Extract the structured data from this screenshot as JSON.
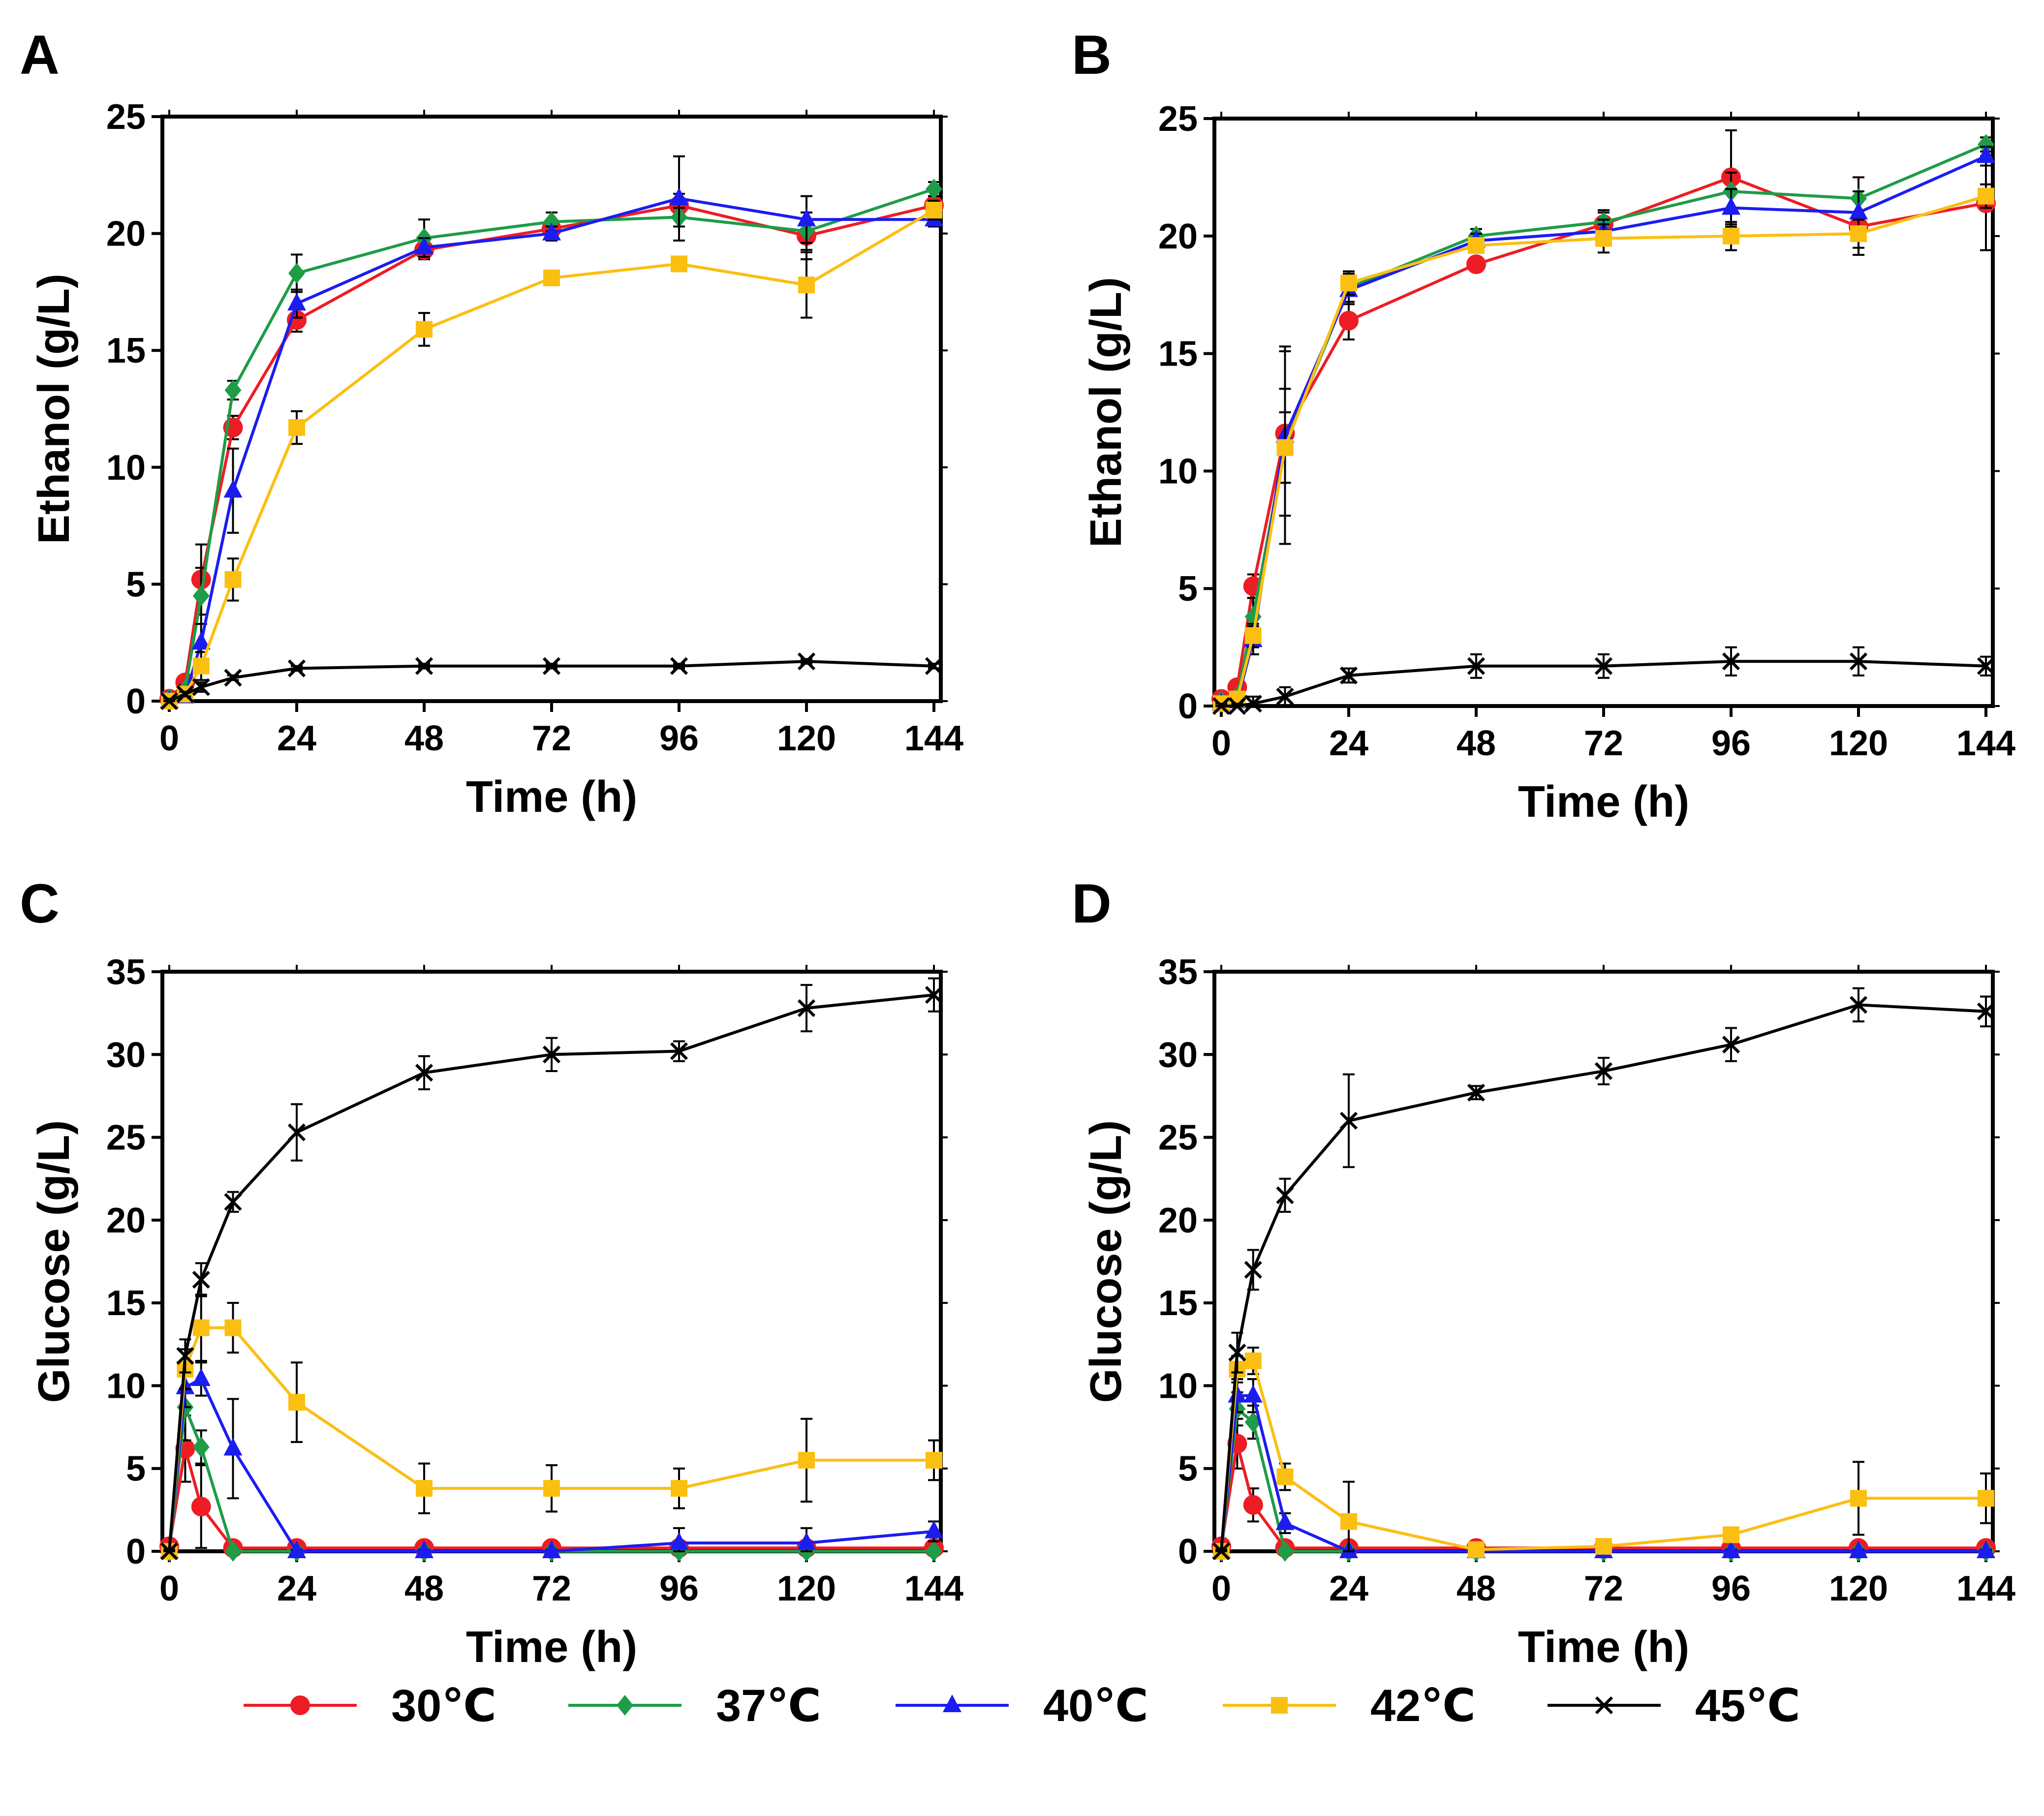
{
  "chart_data": [
    {
      "panel": "A",
      "type": "line",
      "title": "",
      "xlabel": "Time (h)",
      "ylabel": "Ethanol (g/L)",
      "xlim": [
        0,
        144
      ],
      "ylim": [
        0,
        25
      ],
      "xticks": [
        "0",
        "24",
        "48",
        "72",
        "96",
        "120",
        "144"
      ],
      "yticks": [
        "0",
        "5",
        "10",
        "15",
        "20",
        "25"
      ],
      "series": [
        {
          "name": "30℃",
          "x": [
            0,
            3,
            6,
            12,
            24,
            48,
            72,
            96,
            120,
            144
          ],
          "values": [
            0.1,
            0.8,
            5.2,
            11.7,
            16.3,
            19.3,
            20.2,
            21.2,
            19.9,
            21.2
          ],
          "errors": [
            0.1,
            0.2,
            1.5,
            0.5,
            0.5,
            0.4,
            0.3,
            0.5,
            1.0,
            0.4
          ]
        },
        {
          "name": "37℃",
          "x": [
            0,
            3,
            6,
            12,
            24,
            48,
            72,
            96,
            120,
            144
          ],
          "values": [
            0.1,
            0.5,
            4.5,
            13.3,
            18.3,
            19.8,
            20.5,
            20.7,
            20.1,
            21.9
          ],
          "errors": [
            0.1,
            0.2,
            1.2,
            0.4,
            0.8,
            0.8,
            0.4,
            0.4,
            0.8,
            0.3
          ]
        },
        {
          "name": "40℃",
          "x": [
            0,
            3,
            6,
            12,
            24,
            48,
            72,
            96,
            120,
            144
          ],
          "values": [
            0.0,
            0.2,
            2.5,
            9.0,
            17.0,
            19.4,
            20.0,
            21.5,
            20.6,
            20.6
          ],
          "errors": [
            0.1,
            0.1,
            0.8,
            1.8,
            0.6,
            0.4,
            0.3,
            1.8,
            1.0,
            0.3
          ]
        },
        {
          "name": "42℃",
          "x": [
            0,
            3,
            6,
            12,
            24,
            48,
            72,
            96,
            120,
            144
          ],
          "values": [
            0.0,
            0.3,
            1.5,
            5.2,
            11.7,
            15.9,
            18.1,
            18.7,
            17.8,
            21.0
          ],
          "errors": [
            0.1,
            0.1,
            0.6,
            0.9,
            0.7,
            0.7,
            0.3,
            0.3,
            1.4,
            0.4
          ]
        },
        {
          "name": "45℃",
          "x": [
            0,
            3,
            6,
            12,
            24,
            48,
            72,
            96,
            120,
            144
          ],
          "values": [
            0.0,
            0.3,
            0.6,
            1.0,
            1.4,
            1.5,
            1.5,
            1.5,
            1.7,
            1.5
          ],
          "errors": [
            0.1,
            0.1,
            0.2,
            0.1,
            0.1,
            0.1,
            0.1,
            0.1,
            0.1,
            0.1
          ]
        }
      ]
    },
    {
      "panel": "B",
      "type": "line",
      "title": "",
      "xlabel": "Time (h)",
      "ylabel": "Ethanol (g/L)",
      "xlim": [
        0,
        144
      ],
      "ylim": [
        0,
        25
      ],
      "xticks": [
        "0",
        "24",
        "48",
        "72",
        "96",
        "120",
        "144"
      ],
      "yticks": [
        "0",
        "5",
        "10",
        "15",
        "20",
        "25"
      ],
      "series": [
        {
          "name": "30℃",
          "x": [
            0,
            3,
            6,
            12,
            24,
            48,
            72,
            96,
            120,
            144
          ],
          "values": [
            0.3,
            0.8,
            5.1,
            11.6,
            16.4,
            18.8,
            20.5,
            22.5,
            20.4,
            21.4
          ],
          "errors": [
            0.1,
            0.2,
            0.5,
            3.5,
            0.8,
            0.3,
            0.5,
            2.0,
            1.2,
            2.0
          ]
        },
        {
          "name": "37℃",
          "x": [
            0,
            3,
            6,
            12,
            24,
            48,
            72,
            96,
            120,
            144
          ],
          "values": [
            0.2,
            0.4,
            3.8,
            11.1,
            17.8,
            20.0,
            20.6,
            21.9,
            21.6,
            23.9
          ],
          "errors": [
            0.1,
            0.2,
            0.8,
            4.2,
            0.6,
            0.3,
            0.5,
            0.8,
            0.9,
            0.3
          ]
        },
        {
          "name": "40℃",
          "x": [
            0,
            3,
            6,
            12,
            24,
            48,
            72,
            96,
            120,
            144
          ],
          "values": [
            0.1,
            0.2,
            2.8,
            11.5,
            17.7,
            19.8,
            20.2,
            21.2,
            21.0,
            23.4
          ],
          "errors": [
            0.1,
            0.1,
            0.6,
            2.0,
            0.6,
            0.3,
            0.5,
            0.8,
            0.9,
            0.4
          ]
        },
        {
          "name": "42℃",
          "x": [
            0,
            3,
            6,
            12,
            24,
            48,
            72,
            96,
            120,
            144
          ],
          "values": [
            0.1,
            0.3,
            3.0,
            11.0,
            18.0,
            19.6,
            19.9,
            20.0,
            20.1,
            21.7
          ],
          "errors": [
            0.1,
            0.1,
            0.5,
            1.5,
            0.5,
            0.3,
            0.6,
            0.6,
            0.6,
            0.5
          ]
        },
        {
          "name": "45℃",
          "x": [
            0,
            3,
            6,
            12,
            24,
            48,
            72,
            96,
            120,
            144
          ],
          "values": [
            0.0,
            0.0,
            0.1,
            0.4,
            1.3,
            1.7,
            1.7,
            1.9,
            1.9,
            1.7
          ],
          "errors": [
            0.1,
            0.1,
            0.3,
            0.4,
            0.3,
            0.5,
            0.5,
            0.6,
            0.6,
            0.4
          ]
        }
      ]
    },
    {
      "panel": "C",
      "type": "line",
      "title": "",
      "xlabel": "Time (h)",
      "ylabel": "Glucose (g/L)",
      "xlim": [
        0,
        144
      ],
      "ylim": [
        0,
        35
      ],
      "xticks": [
        "0",
        "24",
        "48",
        "72",
        "96",
        "120",
        "144"
      ],
      "yticks": [
        "0",
        "5",
        "10",
        "15",
        "20",
        "25",
        "30",
        "35"
      ],
      "series": [
        {
          "name": "30℃",
          "x": [
            0,
            3,
            6,
            12,
            24,
            48,
            72,
            96,
            120,
            144
          ],
          "values": [
            0.3,
            6.2,
            2.7,
            0.2,
            0.2,
            0.2,
            0.2,
            0.2,
            0.2,
            0.2
          ],
          "errors": [
            0.1,
            2.0,
            2.5,
            0.1,
            0.1,
            0.1,
            0.1,
            0.1,
            0.1,
            0.1
          ]
        },
        {
          "name": "37℃",
          "x": [
            0,
            3,
            6,
            12,
            24,
            48,
            72,
            96,
            120,
            144
          ],
          "values": [
            0.0,
            8.7,
            6.3,
            0.0,
            0.0,
            0.0,
            0.0,
            0.0,
            0.0,
            0.0
          ],
          "errors": [
            0.1,
            2.0,
            1.0,
            0.1,
            0.1,
            0.1,
            0.1,
            0.1,
            0.1,
            0.1
          ]
        },
        {
          "name": "40℃",
          "x": [
            0,
            3,
            6,
            12,
            24,
            48,
            72,
            96,
            120,
            144
          ],
          "values": [
            0.0,
            9.9,
            10.4,
            6.2,
            0.0,
            0.0,
            0.0,
            0.5,
            0.5,
            1.2
          ],
          "errors": [
            0.1,
            1.2,
            1.0,
            3.0,
            0.1,
            0.1,
            0.1,
            0.9,
            0.9,
            0.6
          ]
        },
        {
          "name": "42℃",
          "x": [
            0,
            3,
            6,
            12,
            24,
            48,
            72,
            96,
            120,
            144
          ],
          "values": [
            0.0,
            11.0,
            13.5,
            13.5,
            9.0,
            3.8,
            3.8,
            3.8,
            5.5,
            5.5
          ],
          "errors": [
            0.1,
            1.2,
            2.0,
            1.5,
            2.4,
            1.5,
            1.4,
            1.2,
            2.5,
            1.2
          ]
        },
        {
          "name": "45℃",
          "x": [
            0,
            3,
            6,
            12,
            24,
            48,
            72,
            96,
            120,
            144
          ],
          "values": [
            0.0,
            11.8,
            16.4,
            21.1,
            25.3,
            28.9,
            30.0,
            30.2,
            32.8,
            33.6
          ],
          "errors": [
            0.1,
            1.0,
            1.0,
            0.6,
            1.7,
            1.0,
            1.0,
            0.6,
            1.4,
            1.0
          ]
        }
      ]
    },
    {
      "panel": "D",
      "type": "line",
      "title": "",
      "xlabel": "Time (h)",
      "ylabel": "Glucose (g/L)",
      "xlim": [
        0,
        144
      ],
      "ylim": [
        0,
        35
      ],
      "xticks": [
        "0",
        "24",
        "48",
        "72",
        "96",
        "120",
        "144"
      ],
      "yticks": [
        "0",
        "5",
        "10",
        "15",
        "20",
        "25",
        "30",
        "35"
      ],
      "series": [
        {
          "name": "30℃",
          "x": [
            0,
            3,
            6,
            12,
            24,
            48,
            72,
            96,
            120,
            144
          ],
          "values": [
            0.3,
            6.5,
            2.8,
            0.2,
            0.2,
            0.2,
            0.2,
            0.2,
            0.2,
            0.2
          ],
          "errors": [
            0.1,
            1.5,
            1.0,
            0.1,
            0.1,
            0.1,
            0.1,
            0.1,
            0.1,
            0.1
          ]
        },
        {
          "name": "37℃",
          "x": [
            0,
            3,
            6,
            12,
            24,
            48,
            72,
            96,
            120,
            144
          ],
          "values": [
            0.0,
            8.6,
            7.8,
            0.0,
            0.0,
            0.0,
            0.0,
            0.0,
            0.0,
            0.0
          ],
          "errors": [
            0.1,
            1.0,
            1.0,
            0.1,
            0.1,
            0.1,
            0.1,
            0.1,
            0.1,
            0.1
          ]
        },
        {
          "name": "40℃",
          "x": [
            0,
            3,
            6,
            12,
            24,
            48,
            72,
            96,
            120,
            144
          ],
          "values": [
            0.0,
            9.4,
            9.4,
            1.7,
            0.0,
            0.0,
            0.0,
            0.0,
            0.0,
            0.0
          ],
          "errors": [
            0.1,
            1.0,
            1.0,
            0.6,
            0.1,
            0.1,
            0.1,
            0.1,
            0.1,
            0.1
          ]
        },
        {
          "name": "42℃",
          "x": [
            0,
            3,
            6,
            12,
            24,
            48,
            72,
            96,
            120,
            144
          ],
          "values": [
            0.0,
            11.0,
            11.5,
            4.5,
            1.8,
            0.1,
            0.3,
            1.0,
            3.2,
            3.2
          ],
          "errors": [
            0.1,
            0.8,
            0.8,
            0.8,
            2.4,
            0.2,
            0.2,
            0.3,
            2.2,
            1.5
          ]
        },
        {
          "name": "45℃",
          "x": [
            0,
            3,
            6,
            12,
            24,
            48,
            72,
            96,
            120,
            144
          ],
          "values": [
            0.0,
            12.0,
            17.0,
            21.5,
            26.0,
            27.7,
            29.0,
            30.6,
            33.0,
            32.6
          ],
          "errors": [
            0.1,
            1.2,
            1.2,
            1.0,
            2.8,
            0.4,
            0.8,
            1.0,
            1.0,
            0.9
          ]
        }
      ]
    }
  ],
  "legend": {
    "position": "bottom",
    "items": [
      {
        "label": "30℃",
        "color": "#ee1c25",
        "marker": "circle"
      },
      {
        "label": "37℃",
        "color": "#1e9c47",
        "marker": "diamond"
      },
      {
        "label": "40℃",
        "color": "#1c1cf0",
        "marker": "triangle"
      },
      {
        "label": "42℃",
        "color": "#fbbf12",
        "marker": "square"
      },
      {
        "label": "45℃",
        "color": "#000000",
        "marker": "cross"
      }
    ]
  }
}
